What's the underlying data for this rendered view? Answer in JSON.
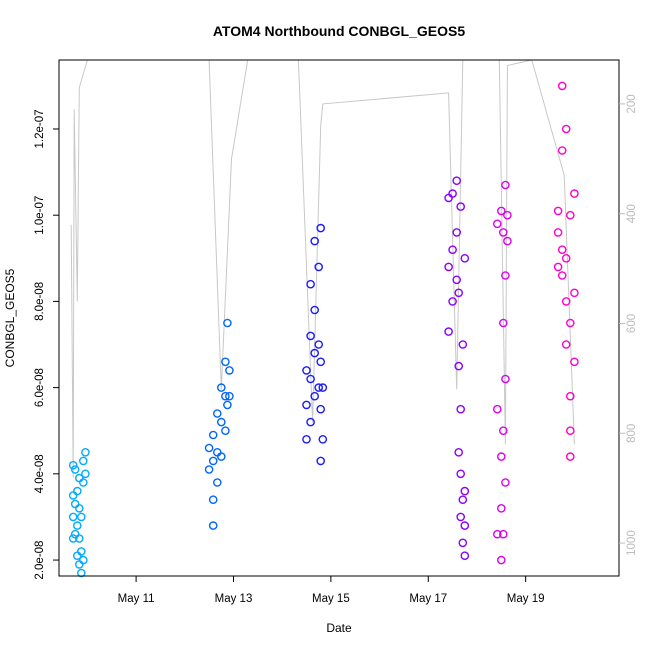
{
  "chart_data": {
    "type": "scatter",
    "title": "ATOM4 Northbound CONBGL_GEOS5",
    "xlabel": "Date",
    "ylabel": "CONBGL_GEOS5",
    "x_ticks": [
      "May 11",
      "May 13",
      "May 15",
      "May 17",
      "May 19"
    ],
    "x_tick_dates": [
      "2018-05-11",
      "2018-05-13",
      "2018-05-15",
      "2018-05-17",
      "2018-05-19"
    ],
    "xlim": [
      "2018-05-09 10:00",
      "2018-05-20 22:00"
    ],
    "ylim": [
      1.63e-08,
      1.36e-07
    ],
    "y_ticks": [
      2e-08,
      4e-08,
      6e-08,
      8e-08,
      1e-07,
      1.2e-07
    ],
    "y_tick_labels": [
      "2.0e-08",
      "4.0e-08",
      "6.0e-08",
      "8.0e-08",
      "1.0e-07",
      "1.2e-07"
    ],
    "right_axis": {
      "ticks": [
        200,
        400,
        600,
        800,
        1000
      ],
      "ylim": [
        1060,
        120
      ],
      "color": "#bdbdbd"
    },
    "grid": false,
    "legend": "none",
    "series": [
      {
        "color": "#00aaff",
        "points": [
          [
            "2018-05-09 17:00",
            2.5e-08
          ],
          [
            "2018-05-09 17:00",
            3e-08
          ],
          [
            "2018-05-09 17:00",
            3.5e-08
          ],
          [
            "2018-05-09 17:00",
            4.2e-08
          ],
          [
            "2018-05-09 18:00",
            2.6e-08
          ],
          [
            "2018-05-09 18:00",
            3.3e-08
          ],
          [
            "2018-05-09 18:00",
            4.1e-08
          ],
          [
            "2018-05-09 19:00",
            2.1e-08
          ],
          [
            "2018-05-09 19:00",
            2.8e-08
          ],
          [
            "2018-05-09 19:00",
            3.6e-08
          ],
          [
            "2018-05-09 20:00",
            1.9e-08
          ],
          [
            "2018-05-09 20:00",
            2.5e-08
          ],
          [
            "2018-05-09 20:00",
            3.2e-08
          ],
          [
            "2018-05-09 20:00",
            3.9e-08
          ],
          [
            "2018-05-09 21:00",
            1.7e-08
          ],
          [
            "2018-05-09 21:00",
            2.2e-08
          ],
          [
            "2018-05-09 21:00",
            3e-08
          ],
          [
            "2018-05-09 22:00",
            2e-08
          ],
          [
            "2018-05-09 22:00",
            3.8e-08
          ],
          [
            "2018-05-09 22:00",
            4.3e-08
          ],
          [
            "2018-05-09 23:00",
            4e-08
          ],
          [
            "2018-05-09 23:00",
            4.5e-08
          ]
        ]
      },
      {
        "color": "#0066ff",
        "points": [
          [
            "2018-05-12 12:00",
            4.1e-08
          ],
          [
            "2018-05-12 12:00",
            4.6e-08
          ],
          [
            "2018-05-12 14:00",
            2.8e-08
          ],
          [
            "2018-05-12 14:00",
            3.4e-08
          ],
          [
            "2018-05-12 14:00",
            4.3e-08
          ],
          [
            "2018-05-12 14:00",
            4.9e-08
          ],
          [
            "2018-05-12 16:00",
            3.8e-08
          ],
          [
            "2018-05-12 16:00",
            4.5e-08
          ],
          [
            "2018-05-12 16:00",
            5.4e-08
          ],
          [
            "2018-05-12 18:00",
            4.4e-08
          ],
          [
            "2018-05-12 18:00",
            5.2e-08
          ],
          [
            "2018-05-12 18:00",
            6e-08
          ],
          [
            "2018-05-12 20:00",
            5e-08
          ],
          [
            "2018-05-12 20:00",
            5.8e-08
          ],
          [
            "2018-05-12 20:00",
            6.6e-08
          ],
          [
            "2018-05-12 21:00",
            5.6e-08
          ],
          [
            "2018-05-12 21:00",
            7.5e-08
          ],
          [
            "2018-05-12 22:00",
            5.8e-08
          ],
          [
            "2018-05-12 22:00",
            6.4e-08
          ]
        ]
      },
      {
        "color": "#1a1aff",
        "points": [
          [
            "2018-05-14 12:00",
            4.8e-08
          ],
          [
            "2018-05-14 12:00",
            5.6e-08
          ],
          [
            "2018-05-14 12:00",
            6.4e-08
          ],
          [
            "2018-05-14 14:00",
            5.2e-08
          ],
          [
            "2018-05-14 14:00",
            6.2e-08
          ],
          [
            "2018-05-14 14:00",
            7.2e-08
          ],
          [
            "2018-05-14 14:00",
            8.4e-08
          ],
          [
            "2018-05-14 16:00",
            5.8e-08
          ],
          [
            "2018-05-14 16:00",
            6.8e-08
          ],
          [
            "2018-05-14 16:00",
            7.8e-08
          ],
          [
            "2018-05-14 16:00",
            9.4e-08
          ],
          [
            "2018-05-14 18:00",
            6e-08
          ],
          [
            "2018-05-14 18:00",
            7e-08
          ],
          [
            "2018-05-14 18:00",
            8.8e-08
          ],
          [
            "2018-05-14 19:00",
            4.3e-08
          ],
          [
            "2018-05-14 19:00",
            5.5e-08
          ],
          [
            "2018-05-14 19:00",
            6.6e-08
          ],
          [
            "2018-05-14 19:00",
            9.7e-08
          ],
          [
            "2018-05-14 20:00",
            4.8e-08
          ],
          [
            "2018-05-14 20:00",
            6e-08
          ]
        ]
      },
      {
        "color": "#8a00ff",
        "points": [
          [
            "2018-05-17 10:00",
            7.3e-08
          ],
          [
            "2018-05-17 10:00",
            8.8e-08
          ],
          [
            "2018-05-17 10:00",
            1.04e-07
          ],
          [
            "2018-05-17 12:00",
            8e-08
          ],
          [
            "2018-05-17 12:00",
            9.2e-08
          ],
          [
            "2018-05-17 12:00",
            1.05e-07
          ],
          [
            "2018-05-17 14:00",
            8.5e-08
          ],
          [
            "2018-05-17 14:00",
            9.6e-08
          ],
          [
            "2018-05-17 14:00",
            1.08e-07
          ],
          [
            "2018-05-17 15:00",
            4.5e-08
          ],
          [
            "2018-05-17 15:00",
            6.5e-08
          ],
          [
            "2018-05-17 15:00",
            8.2e-08
          ],
          [
            "2018-05-17 16:00",
            3e-08
          ],
          [
            "2018-05-17 16:00",
            4e-08
          ],
          [
            "2018-05-17 16:00",
            5.5e-08
          ],
          [
            "2018-05-17 16:00",
            1.02e-07
          ],
          [
            "2018-05-17 17:00",
            2.4e-08
          ],
          [
            "2018-05-17 17:00",
            3.4e-08
          ],
          [
            "2018-05-17 17:00",
            7e-08
          ],
          [
            "2018-05-17 18:00",
            2.1e-08
          ],
          [
            "2018-05-17 18:00",
            2.8e-08
          ],
          [
            "2018-05-17 18:00",
            3.6e-08
          ],
          [
            "2018-05-17 18:00",
            9e-08
          ]
        ]
      },
      {
        "color": "#dd00ee",
        "points": [
          [
            "2018-05-18 10:00",
            9.8e-08
          ],
          [
            "2018-05-18 10:00",
            5.5e-08
          ],
          [
            "2018-05-18 10:00",
            2.6e-08
          ],
          [
            "2018-05-18 12:00",
            2e-08
          ],
          [
            "2018-05-18 12:00",
            3.2e-08
          ],
          [
            "2018-05-18 12:00",
            4.4e-08
          ],
          [
            "2018-05-18 12:00",
            1.01e-07
          ],
          [
            "2018-05-18 13:00",
            2.6e-08
          ],
          [
            "2018-05-18 13:00",
            5e-08
          ],
          [
            "2018-05-18 13:00",
            7.5e-08
          ],
          [
            "2018-05-18 13:00",
            9.6e-08
          ],
          [
            "2018-05-18 14:00",
            3.8e-08
          ],
          [
            "2018-05-18 14:00",
            6.2e-08
          ],
          [
            "2018-05-18 14:00",
            8.6e-08
          ],
          [
            "2018-05-18 14:00",
            1.07e-07
          ],
          [
            "2018-05-18 15:00",
            9.4e-08
          ],
          [
            "2018-05-18 15:00",
            1e-07
          ]
        ]
      },
      {
        "color": "#ff00cc",
        "points": [
          [
            "2018-05-19 16:00",
            8.8e-08
          ],
          [
            "2018-05-19 16:00",
            9.6e-08
          ],
          [
            "2018-05-19 16:00",
            1.01e-07
          ],
          [
            "2018-05-19 18:00",
            8.6e-08
          ],
          [
            "2018-05-19 18:00",
            9.2e-08
          ],
          [
            "2018-05-19 18:00",
            1.3e-07
          ],
          [
            "2018-05-19 18:00",
            1.15e-07
          ],
          [
            "2018-05-19 20:00",
            7e-08
          ],
          [
            "2018-05-19 20:00",
            8e-08
          ],
          [
            "2018-05-19 20:00",
            9e-08
          ],
          [
            "2018-05-19 20:00",
            1.2e-07
          ],
          [
            "2018-05-19 22:00",
            4.4e-08
          ],
          [
            "2018-05-19 22:00",
            5e-08
          ],
          [
            "2018-05-19 22:00",
            5.8e-08
          ],
          [
            "2018-05-19 22:00",
            7.5e-08
          ],
          [
            "2018-05-19 22:00",
            1e-07
          ],
          [
            "2018-05-20 00:00",
            6.6e-08
          ],
          [
            "2018-05-20 00:00",
            8.2e-08
          ],
          [
            "2018-05-20 00:00",
            1.05e-07
          ]
        ]
      }
    ],
    "altitude_trace": {
      "color": "#c8c8c8",
      "points": [
        [
          "2018-05-09 16:00",
          420
        ],
        [
          "2018-05-09 17:00",
          880
        ],
        [
          "2018-05-09 17:30",
          210
        ],
        [
          "2018-05-09 19:00",
          560
        ],
        [
          "2018-05-09 20:00",
          170
        ],
        [
          "2018-05-10 00:00",
          60
        ],
        [
          "2018-05-12 12:00",
          60
        ],
        [
          "2018-05-12 18:00",
          720
        ],
        [
          "2018-05-12 23:00",
          300
        ],
        [
          "2018-05-13 07:00",
          60
        ],
        [
          "2018-05-14 08:00",
          60
        ],
        [
          "2018-05-14 15:00",
          780
        ],
        [
          "2018-05-14 19:00",
          240
        ],
        [
          "2018-05-14 20:00",
          200
        ],
        [
          "2018-05-17 10:00",
          180
        ],
        [
          "2018-05-17 14:00",
          720
        ],
        [
          "2018-05-17 17:00",
          110
        ],
        [
          "2018-05-17 19:00",
          60
        ],
        [
          "2018-05-18 11:00",
          60
        ],
        [
          "2018-05-18 14:00",
          820
        ],
        [
          "2018-05-18 15:00",
          130
        ],
        [
          "2018-05-19 03:00",
          60
        ],
        [
          "2018-05-19 19:00",
          330
        ],
        [
          "2018-05-20 00:00",
          820
        ]
      ]
    }
  }
}
